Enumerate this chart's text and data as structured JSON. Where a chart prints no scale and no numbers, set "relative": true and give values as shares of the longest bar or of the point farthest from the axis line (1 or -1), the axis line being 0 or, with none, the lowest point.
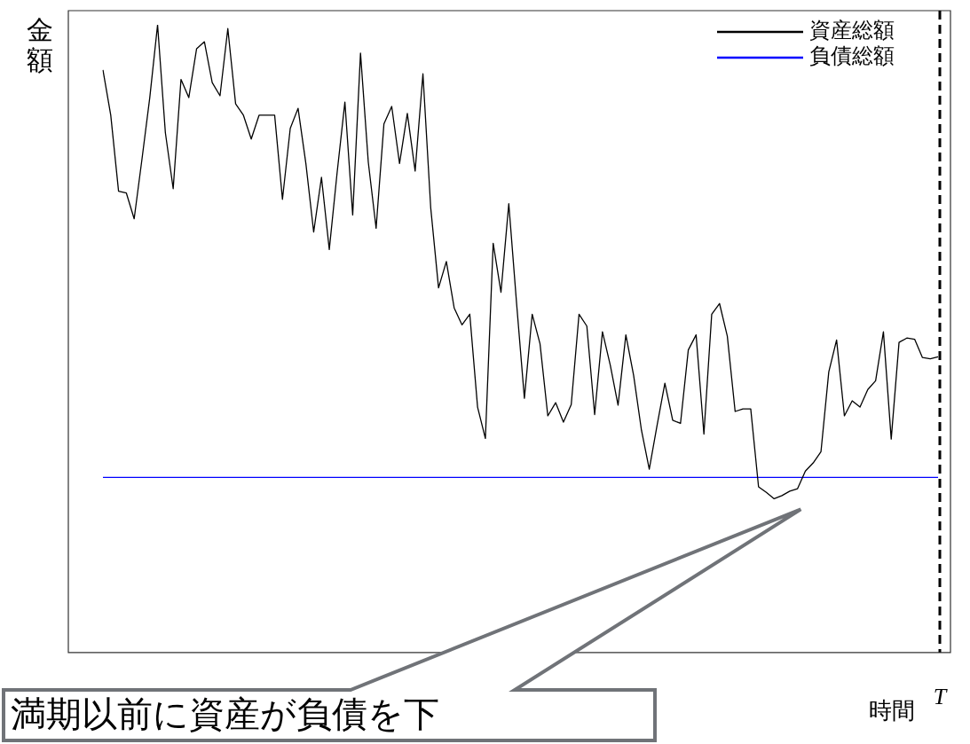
{
  "chart_data": {
    "type": "line",
    "relative": true,
    "xlabel": "時間",
    "ylabel": "金額",
    "legend": "top right",
    "grid": false,
    "marker": "none",
    "categories": [
      null,
      null,
      null,
      null,
      null,
      null,
      null,
      null,
      null,
      null,
      null,
      null,
      null,
      null,
      null,
      null,
      null,
      null,
      null,
      null,
      null,
      null,
      null,
      null,
      null,
      null,
      null,
      null,
      null,
      null,
      null,
      null,
      null,
      null,
      null,
      null,
      null,
      null,
      null,
      null,
      null,
      null,
      null,
      null,
      null,
      null,
      null,
      null,
      null,
      null,
      null,
      null,
      null,
      null,
      null,
      null,
      null,
      null,
      null,
      null,
      null,
      null,
      null,
      null,
      null,
      null,
      null,
      null,
      null,
      null,
      null,
      null,
      null,
      null,
      null,
      null,
      null,
      null,
      null,
      null,
      null,
      null,
      null,
      null,
      null,
      null,
      null,
      null,
      null,
      null,
      null,
      null,
      null,
      null,
      null,
      null,
      null,
      null,
      null,
      null,
      null,
      null,
      null,
      null,
      null,
      null,
      null,
      null
    ],
    "series": [
      {
        "name": "資産総額",
        "color": "#000000",
        "values": [
          0.928,
          0.856,
          0.735,
          0.732,
          0.691,
          0.786,
          0.884,
          1,
          0.828,
          0.739,
          0.913,
          0.884,
          0.962,
          0.973,
          0.908,
          0.887,
          0.994,
          0.874,
          0.856,
          0.818,
          0.856,
          0.856,
          0.856,
          0.722,
          0.835,
          0.867,
          0.779,
          0.67,
          0.757,
          0.642,
          0.764,
          0.877,
          0.697,
          0.955,
          0.781,
          0.676,
          0.842,
          0.87,
          0.779,
          0.859,
          0.767,
          0.922,
          0.708,
          0.581,
          0.623,
          0.549,
          0.522,
          0.539,
          0.391,
          0.341,
          0.652,
          0.574,
          0.715,
          0.556,
          0.405,
          0.539,
          0.492,
          0.377,
          0.398,
          0.367,
          0.395,
          0.539,
          0.52,
          0.379,
          0.511,
          0.458,
          0.394,
          0.506,
          0.441,
          0.354,
          0.292,
          0.362,
          0.429,
          0.37,
          0.365,
          0.482,
          0.506,
          0.348,
          0.539,
          0.556,
          0.504,
          0.384,
          0.388,
          0.388,
          0.264,
          0.255,
          0.245,
          0.25,
          0.257,
          0.261,
          0.289,
          0.302,
          0.32,
          0.447,
          0.498,
          0.377,
          0.401,
          0.391,
          0.419,
          0.433,
          0.511,
          0.34,
          0.494,
          0.501,
          0.499,
          0.47,
          0.468,
          0.471
        ]
      },
      {
        "name": "負債総額",
        "color": "#0000ff",
        "values": [
          0.279,
          0.279,
          0.279,
          0.279,
          0.279,
          0.279,
          0.279,
          0.279,
          0.279,
          0.279,
          0.279,
          0.279,
          0.279,
          0.279,
          0.279,
          0.279,
          0.279,
          0.279,
          0.279,
          0.279,
          0.279,
          0.279,
          0.279,
          0.279,
          0.279,
          0.279,
          0.279,
          0.279,
          0.279,
          0.279,
          0.279,
          0.279,
          0.279,
          0.279,
          0.279,
          0.279,
          0.279,
          0.279,
          0.279,
          0.279,
          0.279,
          0.279,
          0.279,
          0.279,
          0.279,
          0.279,
          0.279,
          0.279,
          0.279,
          0.279,
          0.279,
          0.279,
          0.279,
          0.279,
          0.279,
          0.279,
          0.279,
          0.279,
          0.279,
          0.279,
          0.279,
          0.279,
          0.279,
          0.279,
          0.279,
          0.279,
          0.279,
          0.279,
          0.279,
          0.279,
          0.279,
          0.279,
          0.279,
          0.279,
          0.279,
          0.279,
          0.279,
          0.279,
          0.279,
          0.279,
          0.279,
          0.279,
          0.279,
          0.279,
          0.279,
          0.279,
          0.279,
          0.279,
          0.279,
          0.279,
          0.279,
          0.279,
          0.279,
          0.279,
          0.279,
          0.279,
          0.279,
          0.279,
          0.279,
          0.279,
          0.279,
          0.279,
          0.279,
          0.279,
          0.279,
          0.279,
          0.279,
          0.279
        ]
      }
    ],
    "ref_lines": [
      {
        "axis": "x",
        "label": "T",
        "color": "#000000",
        "line_style": "dashed"
      }
    ],
    "annotations": [
      "満期以前に資産が負債を下"
    ]
  }
}
